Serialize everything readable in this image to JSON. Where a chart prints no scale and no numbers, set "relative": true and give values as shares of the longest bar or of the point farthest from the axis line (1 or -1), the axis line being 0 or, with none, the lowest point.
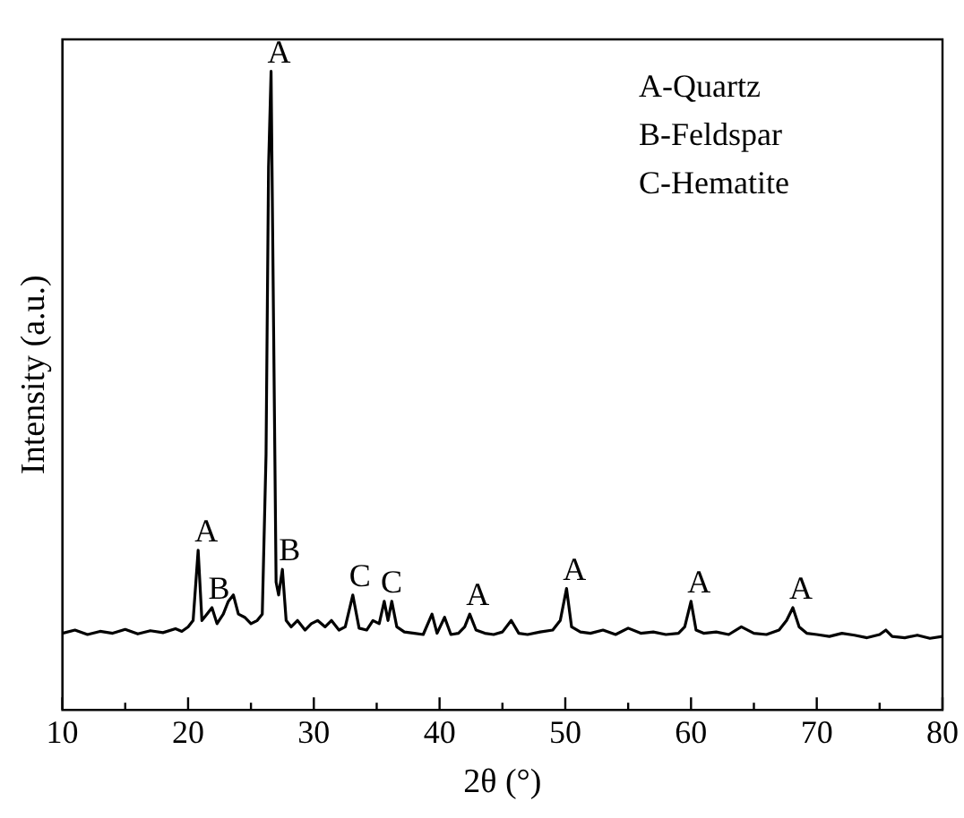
{
  "chart_data": {
    "type": "line",
    "relative": true,
    "xlabel": "2θ (°)",
    "ylabel": "Intensity (a.u.)",
    "x": [
      10,
      11,
      12,
      13,
      14,
      15,
      16,
      17,
      18,
      19,
      19.5,
      20,
      20.4,
      20.8,
      21.1,
      21.5,
      21.9,
      22.3,
      22.8,
      23.2,
      23.6,
      24,
      24.5,
      25,
      25.5,
      25.9,
      26.2,
      26.4,
      26.6,
      26.8,
      27,
      27.2,
      27.5,
      27.8,
      28.2,
      28.7,
      29.3,
      29.8,
      30.3,
      30.9,
      31.4,
      32,
      32.5,
      33.1,
      33.6,
      34.2,
      34.7,
      35.2,
      35.6,
      35.9,
      36.2,
      36.6,
      37.2,
      38,
      38.7,
      39.4,
      39.8,
      40.4,
      40.9,
      41.5,
      42,
      42.4,
      42.9,
      43.6,
      44.3,
      45,
      45.7,
      46.3,
      47,
      48,
      49,
      49.6,
      50.1,
      50.5,
      51.2,
      52,
      53,
      54,
      55,
      56,
      57,
      58,
      59,
      59.5,
      60,
      60.4,
      61,
      62,
      63,
      64,
      65,
      66,
      67,
      67.6,
      68.1,
      68.6,
      69.2,
      70,
      71,
      72,
      73,
      74,
      75,
      75.5,
      76,
      77,
      78,
      79,
      80
    ],
    "values": [
      0.12,
      0.125,
      0.118,
      0.123,
      0.12,
      0.126,
      0.119,
      0.124,
      0.121,
      0.127,
      0.123,
      0.13,
      0.14,
      0.25,
      0.14,
      0.15,
      0.16,
      0.135,
      0.15,
      0.17,
      0.18,
      0.15,
      0.145,
      0.135,
      0.14,
      0.15,
      0.4,
      0.85,
      1,
      0.6,
      0.2,
      0.18,
      0.22,
      0.14,
      0.13,
      0.14,
      0.125,
      0.135,
      0.14,
      0.13,
      0.14,
      0.125,
      0.13,
      0.18,
      0.128,
      0.125,
      0.14,
      0.135,
      0.17,
      0.14,
      0.17,
      0.13,
      0.122,
      0.12,
      0.118,
      0.15,
      0.12,
      0.145,
      0.118,
      0.12,
      0.13,
      0.15,
      0.125,
      0.12,
      0.118,
      0.122,
      0.14,
      0.12,
      0.118,
      0.122,
      0.125,
      0.14,
      0.19,
      0.13,
      0.122,
      0.12,
      0.125,
      0.118,
      0.128,
      0.12,
      0.122,
      0.118,
      0.12,
      0.13,
      0.17,
      0.125,
      0.12,
      0.122,
      0.118,
      0.13,
      0.12,
      0.118,
      0.125,
      0.14,
      0.16,
      0.13,
      0.12,
      0.118,
      0.115,
      0.12,
      0.117,
      0.113,
      0.118,
      0.125,
      0.115,
      0.113,
      0.117,
      0.112,
      0.115
    ],
    "color": "#000000",
    "marker": "none",
    "line_style": "solid",
    "xlim": [
      10,
      80
    ],
    "xticks": [
      10,
      {
        "value": 15,
        "label": null
      },
      20,
      {
        "value": 25,
        "label": null
      },
      30,
      {
        "value": 35,
        "label": null
      },
      40,
      {
        "value": 45,
        "label": null
      },
      50,
      {
        "value": 55,
        "label": null
      },
      60,
      {
        "value": 65,
        "label": null
      },
      70,
      {
        "value": 75,
        "label": null
      },
      80
    ],
    "legend": false,
    "grid": false,
    "annotations": [
      {
        "text": "A",
        "x": 26.6,
        "y": 1
      },
      {
        "text": "A",
        "x": 20.8,
        "y": 0.25
      },
      {
        "text": "B",
        "x": 21.9,
        "y": 0.16
      },
      {
        "text": "B",
        "x": 27.5,
        "y": 0.22
      },
      {
        "text": "C",
        "x": 33.1,
        "y": 0.18
      },
      {
        "text": "C",
        "x": 35.6,
        "y": 0.17
      },
      {
        "text": "A",
        "x": 42.4,
        "y": 0.15
      },
      {
        "text": "A",
        "x": 50.1,
        "y": 0.19
      },
      {
        "text": "A",
        "x": 60,
        "y": 0.17
      },
      {
        "text": "A",
        "x": 68.1,
        "y": 0.16
      },
      "A-Quartz",
      "B-Feldspar",
      "C-Hematite"
    ]
  }
}
